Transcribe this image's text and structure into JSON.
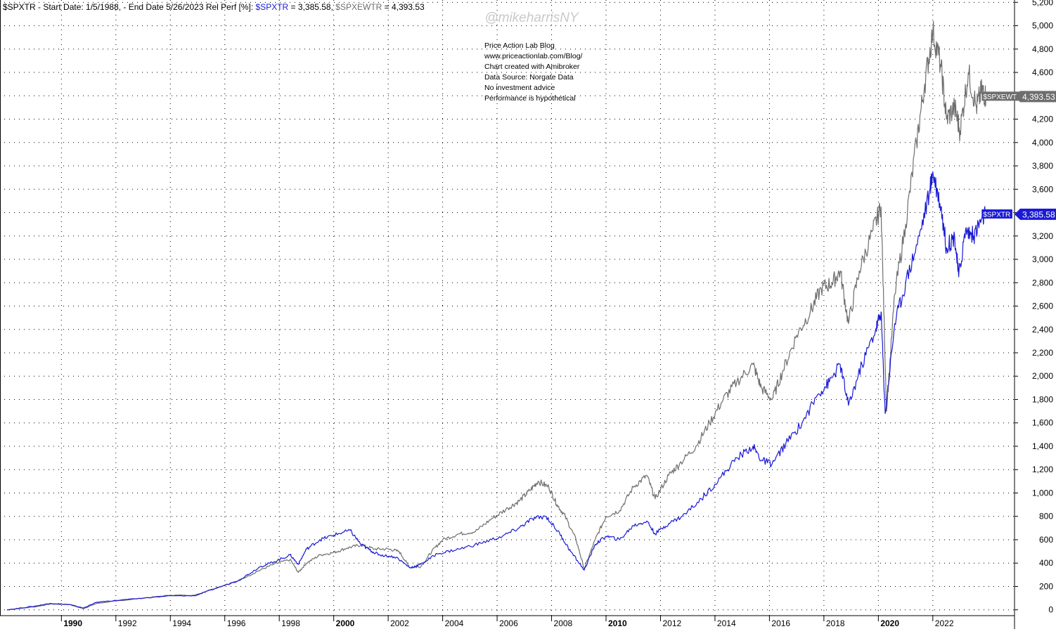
{
  "chart_data": {
    "type": "line",
    "title_parts": [
      {
        "text": "$SPXTR - Start Date: 1/5/1988, - End Date 5/26/2023 Rel Perf [%]: ",
        "color": "#000000"
      },
      {
        "text": "$SPXTR",
        "color": "#1a1ad6"
      },
      {
        "text": " = 3,385.58, ",
        "color": "#000000"
      },
      {
        "text": "$SPXEWTR",
        "color": "#6e6e6e"
      },
      {
        "text": " = 4,393.53",
        "color": "#000000"
      }
    ],
    "watermark": "@mikeharrisNY",
    "notes": [
      "Price Action Lab Blog",
      "www.priceactionlab.com/Blog/",
      "Chart created with Amibroker",
      "Data Source: Norgate Data",
      "No investment advice",
      "Performance is hypothetical"
    ],
    "xlim": [
      1987.9,
      2025.0
    ],
    "ylim": [
      -50,
      5220
    ],
    "y_ticks": [
      0,
      200,
      400,
      600,
      800,
      1000,
      1200,
      1400,
      1600,
      1800,
      2000,
      2200,
      2400,
      2600,
      2800,
      3000,
      3200,
      3400,
      3600,
      3800,
      4000,
      4200,
      4400,
      4600,
      4800,
      5000,
      5200
    ],
    "y_tick_labels": [
      "0",
      "200",
      "400",
      "600",
      "800",
      "1,000",
      "1,200",
      "1,400",
      "1,600",
      "1,800",
      "2,000",
      "2,200",
      "2,400",
      "2,600",
      "2,800",
      "3,000",
      "3,200",
      "3,400",
      "3,600",
      "3,800",
      "4,000",
      "4,200",
      "4,400",
      "4,600",
      "4,800",
      "5,000",
      "5,200"
    ],
    "x_ticks": [
      1990,
      1992,
      1994,
      1996,
      1998,
      2000,
      2002,
      2004,
      2006,
      2008,
      2010,
      2012,
      2014,
      2016,
      2018,
      2020,
      2022
    ],
    "x_tick_labels": [
      "1990",
      "1992",
      "1994",
      "1996",
      "1998",
      "2000",
      "2002",
      "2004",
      "2006",
      "2008",
      "2010",
      "2012",
      "2014",
      "2016",
      "2018",
      "2020",
      "2022"
    ],
    "x_bold_ticks": [
      1990,
      2000,
      2010,
      2020
    ],
    "series": [
      {
        "name": "$SPXEWTR",
        "color": "#6e6e6e",
        "label": "$SPXEWTR",
        "last_label": "4,393.53",
        "last_value": 4393.53,
        "points": [
          [
            1988.0,
            0
          ],
          [
            1989.0,
            25
          ],
          [
            1989.6,
            50
          ],
          [
            1990.3,
            45
          ],
          [
            1990.8,
            10
          ],
          [
            1991.3,
            55
          ],
          [
            1992.0,
            75
          ],
          [
            1993.0,
            100
          ],
          [
            1994.0,
            125
          ],
          [
            1994.9,
            125
          ],
          [
            1995.5,
            175
          ],
          [
            1996.5,
            250
          ],
          [
            1997.2,
            330
          ],
          [
            1997.8,
            390
          ],
          [
            1998.4,
            430
          ],
          [
            1998.7,
            320
          ],
          [
            1999.0,
            400
          ],
          [
            1999.5,
            470
          ],
          [
            2000.0,
            490
          ],
          [
            2000.5,
            530
          ],
          [
            2001.0,
            555
          ],
          [
            2001.5,
            520
          ],
          [
            2002.0,
            520
          ],
          [
            2002.4,
            500
          ],
          [
            2002.8,
            360
          ],
          [
            2003.2,
            370
          ],
          [
            2003.6,
            500
          ],
          [
            2004.0,
            600
          ],
          [
            2004.6,
            650
          ],
          [
            2005.2,
            670
          ],
          [
            2005.8,
            780
          ],
          [
            2006.4,
            870
          ],
          [
            2006.8,
            930
          ],
          [
            2007.2,
            1020
          ],
          [
            2007.5,
            1100
          ],
          [
            2007.9,
            1050
          ],
          [
            2008.2,
            900
          ],
          [
            2008.5,
            800
          ],
          [
            2008.9,
            600
          ],
          [
            2009.2,
            350
          ],
          [
            2009.6,
            600
          ],
          [
            2010.0,
            800
          ],
          [
            2010.5,
            850
          ],
          [
            2011.0,
            1050
          ],
          [
            2011.5,
            1150
          ],
          [
            2011.8,
            950
          ],
          [
            2012.3,
            1150
          ],
          [
            2012.7,
            1250
          ],
          [
            2013.3,
            1400
          ],
          [
            2013.8,
            1600
          ],
          [
            2014.3,
            1800
          ],
          [
            2014.8,
            1950
          ],
          [
            2015.4,
            2100
          ],
          [
            2015.7,
            1900
          ],
          [
            2016.1,
            1800
          ],
          [
            2016.5,
            2050
          ],
          [
            2017.0,
            2350
          ],
          [
            2017.5,
            2550
          ],
          [
            2017.9,
            2750
          ],
          [
            2018.3,
            2800
          ],
          [
            2018.6,
            2900
          ],
          [
            2018.9,
            2450
          ],
          [
            2019.3,
            2900
          ],
          [
            2019.8,
            3250
          ],
          [
            2020.1,
            3450
          ],
          [
            2020.3,
            1700
          ],
          [
            2020.6,
            2700
          ],
          [
            2021.0,
            3300
          ],
          [
            2021.4,
            4000
          ],
          [
            2021.7,
            4500
          ],
          [
            2022.0,
            4950
          ],
          [
            2022.3,
            4650
          ],
          [
            2022.5,
            4200
          ],
          [
            2022.8,
            4300
          ],
          [
            2023.0,
            4100
          ],
          [
            2023.3,
            4600
          ],
          [
            2023.6,
            4300
          ],
          [
            2023.8,
            4450
          ],
          [
            2023.95,
            4393.53
          ]
        ]
      },
      {
        "name": "$SPXTR",
        "color": "#1a1ad6",
        "label": "$SPXTR",
        "last_label": "3,385.58",
        "last_value": 3385.58,
        "points": [
          [
            1988.0,
            0
          ],
          [
            1989.0,
            30
          ],
          [
            1989.6,
            55
          ],
          [
            1990.3,
            45
          ],
          [
            1990.8,
            15
          ],
          [
            1991.3,
            65
          ],
          [
            1992.0,
            80
          ],
          [
            1993.0,
            100
          ],
          [
            1994.0,
            120
          ],
          [
            1994.9,
            120
          ],
          [
            1995.5,
            170
          ],
          [
            1996.5,
            250
          ],
          [
            1997.3,
            370
          ],
          [
            1997.8,
            410
          ],
          [
            1998.4,
            470
          ],
          [
            1998.7,
            390
          ],
          [
            1999.0,
            520
          ],
          [
            1999.5,
            600
          ],
          [
            2000.0,
            640
          ],
          [
            2000.6,
            680
          ],
          [
            2001.0,
            560
          ],
          [
            2001.4,
            500
          ],
          [
            2001.7,
            470
          ],
          [
            2002.3,
            450
          ],
          [
            2002.8,
            360
          ],
          [
            2003.2,
            390
          ],
          [
            2003.8,
            480
          ],
          [
            2004.6,
            520
          ],
          [
            2005.4,
            570
          ],
          [
            2006.2,
            630
          ],
          [
            2006.8,
            700
          ],
          [
            2007.3,
            780
          ],
          [
            2007.8,
            800
          ],
          [
            2008.3,
            650
          ],
          [
            2008.7,
            500
          ],
          [
            2009.2,
            340
          ],
          [
            2009.6,
            560
          ],
          [
            2010.0,
            630
          ],
          [
            2010.5,
            600
          ],
          [
            2011.0,
            720
          ],
          [
            2011.5,
            760
          ],
          [
            2011.8,
            650
          ],
          [
            2012.3,
            740
          ],
          [
            2012.8,
            800
          ],
          [
            2013.5,
            950
          ],
          [
            2014.2,
            1130
          ],
          [
            2014.8,
            1300
          ],
          [
            2015.4,
            1400
          ],
          [
            2015.7,
            1280
          ],
          [
            2016.1,
            1250
          ],
          [
            2016.6,
            1420
          ],
          [
            2017.2,
            1600
          ],
          [
            2017.8,
            1850
          ],
          [
            2018.2,
            1950
          ],
          [
            2018.6,
            2100
          ],
          [
            2018.9,
            1750
          ],
          [
            2019.4,
            2100
          ],
          [
            2019.9,
            2400
          ],
          [
            2020.1,
            2550
          ],
          [
            2020.25,
            1680
          ],
          [
            2020.6,
            2450
          ],
          [
            2021.0,
            2800
          ],
          [
            2021.5,
            3200
          ],
          [
            2021.9,
            3600
          ],
          [
            2022.0,
            3750
          ],
          [
            2022.3,
            3450
          ],
          [
            2022.5,
            3100
          ],
          [
            2022.8,
            3200
          ],
          [
            2022.95,
            2850
          ],
          [
            2023.2,
            3250
          ],
          [
            2023.5,
            3200
          ],
          [
            2023.8,
            3350
          ],
          [
            2023.95,
            3385.58
          ]
        ]
      }
    ]
  }
}
